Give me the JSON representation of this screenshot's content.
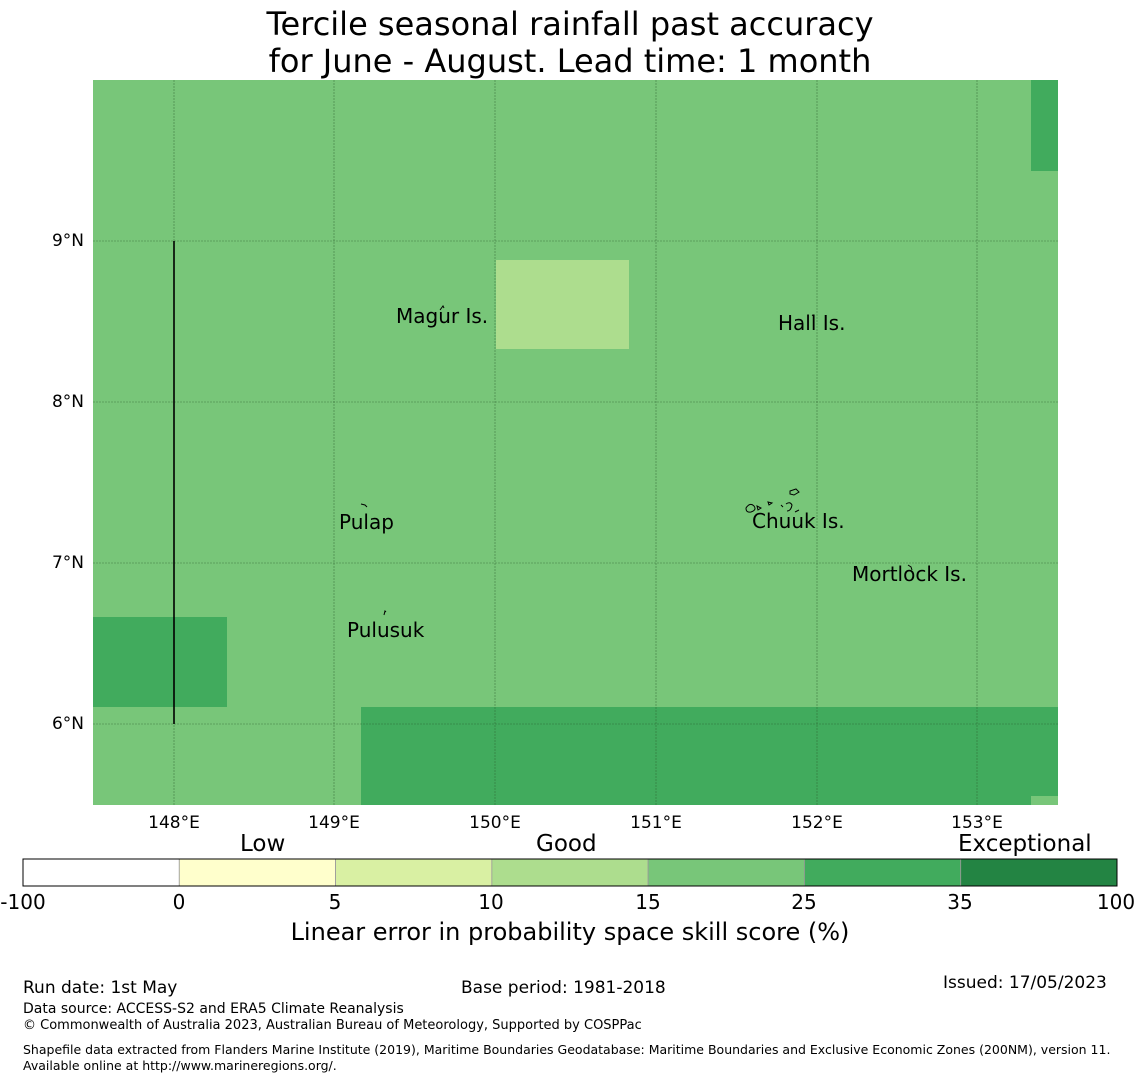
{
  "title": {
    "line1": "Tercile seasonal rainfall past accuracy",
    "line2": "for June - August. Lead time: 1 month"
  },
  "map": {
    "lat_labels": [
      "9°N",
      "8°N",
      "7°N",
      "6°N"
    ],
    "lon_labels": [
      "148°E",
      "149°E",
      "150°E",
      "151°E",
      "152°E",
      "153°E"
    ],
    "places": [
      {
        "name": "Magur Is."
      },
      {
        "name": "Hall Is."
      },
      {
        "name": "Pulap"
      },
      {
        "name": "Chuuk Is."
      },
      {
        "name": "Mortlock Is."
      },
      {
        "name": "Pulusuk"
      }
    ],
    "colors": {
      "base": "#78c679",
      "light": "#addd8e",
      "dark": "#41ab5d",
      "grid": "#2a5a2a"
    }
  },
  "colorbar": {
    "categories": [
      "Low",
      "Good",
      "Exceptional"
    ],
    "ticks": [
      "-100",
      "0",
      "5",
      "10",
      "15",
      "25",
      "35",
      "100"
    ],
    "colors": [
      "#ffffff",
      "#ffffcc",
      "#d9f0a3",
      "#addd8e",
      "#78c679",
      "#41ab5d",
      "#238443"
    ],
    "title": "Linear error in probability space skill score (%)"
  },
  "footer": {
    "run_date": "Run date: 1st May",
    "base_period": "Base period: 1981-2018",
    "issued": "Issued: 17/05/2023",
    "data_source": "Data source: ACCESS-S2 and ERA5 Climate Reanalysis",
    "copyright": "© Commonwealth of Australia 2023, Australian Bureau of Meteorology, Supported by COSPPac",
    "shapefile": "Shapefile data extracted from Flanders Marine Institute (2019), Maritime Boundaries Geodatabase: Maritime Boundaries and Exclusive Economic Zones (200NM), version 11. Available online at http://www.marineregions.org/."
  }
}
